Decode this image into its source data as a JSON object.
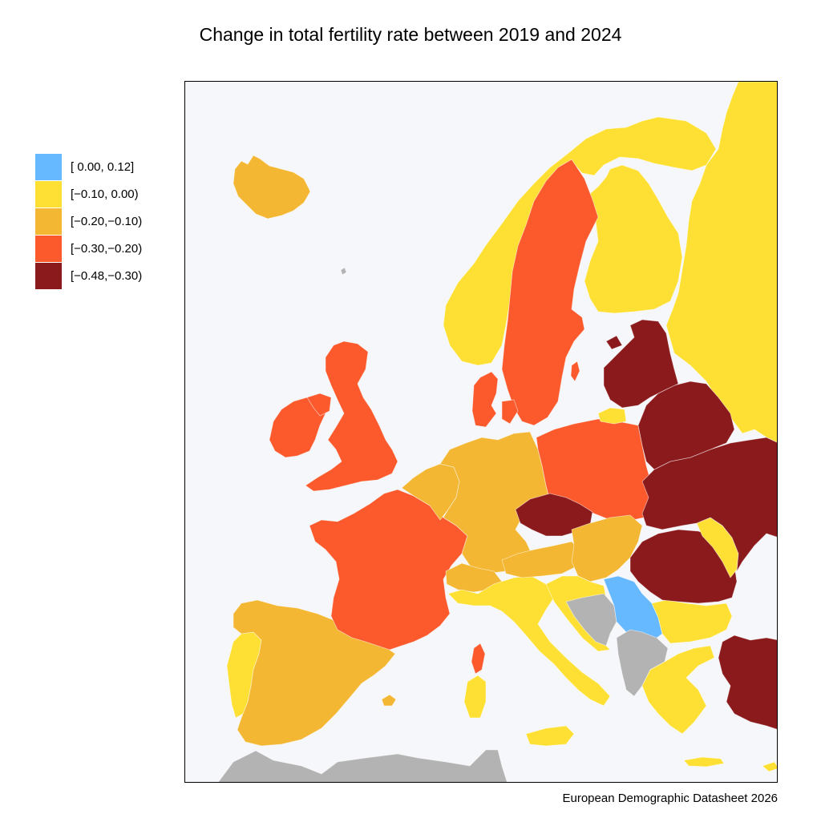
{
  "title": "Change in total fertility rate between 2019 and 2024",
  "source": "European Demographic Datasheet 2026",
  "legend": [
    {
      "label": "[ 0.00, 0.12]",
      "color": "#66b8ff"
    },
    {
      "label": "[−0.10, 0.00)",
      "color": "#fde033"
    },
    {
      "label": "[−0.20,−0.10)",
      "color": "#f3b733"
    },
    {
      "label": "[−0.30,−0.20)",
      "color": "#fc5a2d"
    },
    {
      "label": "[−0.48,−0.30)",
      "color": "#8b1a1d"
    }
  ],
  "colors": {
    "background": "#f6f7fb",
    "no_data": "#b3b3b3"
  },
  "regions": [
    {
      "id": "north-africa",
      "klass": "no-data"
    },
    {
      "id": "iceland",
      "klass": 2
    },
    {
      "id": "russia",
      "klass": 1
    },
    {
      "id": "finland",
      "klass": 1
    },
    {
      "id": "norway",
      "klass": 1
    },
    {
      "id": "sweden",
      "klass": 3
    },
    {
      "id": "denmark",
      "klass": 3
    },
    {
      "id": "ireland",
      "klass": 3
    },
    {
      "id": "great-britain",
      "klass": 3
    },
    {
      "id": "northern-ireland",
      "klass": 3
    },
    {
      "id": "portugal",
      "klass": 1
    },
    {
      "id": "spain",
      "klass": 2
    },
    {
      "id": "balearic-islands",
      "klass": 2
    },
    {
      "id": "france",
      "klass": 3
    },
    {
      "id": "corsica",
      "klass": 3
    },
    {
      "id": "benelux",
      "klass": 2
    },
    {
      "id": "germany",
      "klass": 2
    },
    {
      "id": "switzerland",
      "klass": 2
    },
    {
      "id": "italy",
      "klass": 1
    },
    {
      "id": "sardinia",
      "klass": 1
    },
    {
      "id": "sicily",
      "klass": 1
    },
    {
      "id": "poland",
      "klass": 3
    },
    {
      "id": "kaliningrad",
      "klass": 1
    },
    {
      "id": "czechia",
      "klass": 4
    },
    {
      "id": "austria",
      "klass": 2
    },
    {
      "id": "slovakia-hungary",
      "klass": 2
    },
    {
      "id": "slovenia-croatia",
      "klass": 1
    },
    {
      "id": "bosnia-montenegro",
      "klass": "no-data"
    },
    {
      "id": "serbia",
      "klass": 0
    },
    {
      "id": "kosovo-albania-macedonia",
      "klass": "no-data"
    },
    {
      "id": "bulgaria",
      "klass": 1
    },
    {
      "id": "greece",
      "klass": 1
    },
    {
      "id": "crete",
      "klass": 1
    },
    {
      "id": "cyprus",
      "klass": 1
    },
    {
      "id": "romania",
      "klass": 4
    },
    {
      "id": "moldova",
      "klass": 1
    },
    {
      "id": "ukraine",
      "klass": 4
    },
    {
      "id": "belarus",
      "klass": 4
    },
    {
      "id": "baltic-states",
      "klass": 4
    },
    {
      "id": "turkey",
      "klass": 4
    },
    {
      "id": "gotland",
      "klass": 3
    },
    {
      "id": "faroe-islands",
      "klass": "no-data"
    }
  ]
}
